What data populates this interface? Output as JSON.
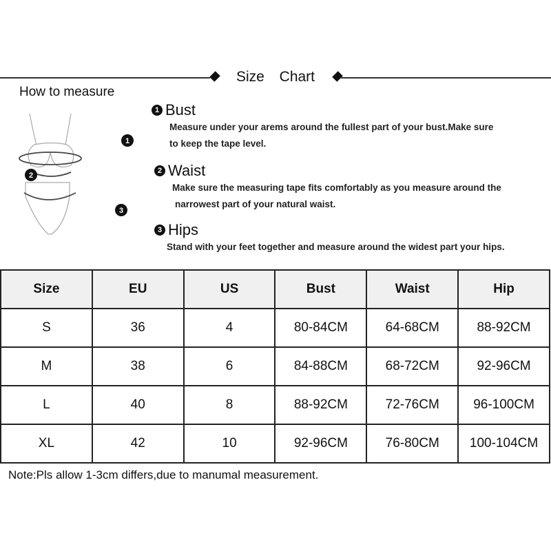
{
  "header": {
    "title": "Size  Chart"
  },
  "how_to": {
    "label": "How to measure",
    "sections": [
      {
        "num": "1",
        "title": "Bust",
        "desc": [
          "Measure under your arems around the fullest part of your bust.Make sure",
          "to keep the tape level."
        ]
      },
      {
        "num": "2",
        "title": "Waist",
        "desc": [
          "Make sure the measuring tape fits comfortably as you measure around the",
          "narrowest part of your natural waist."
        ]
      },
      {
        "num": "3",
        "title": "Hips",
        "desc": [
          "Stand with your feet together and measure around the widest part your hips."
        ]
      }
    ],
    "figure_labels": [
      "1",
      "2",
      "3"
    ]
  },
  "table": {
    "headers": [
      "Size",
      "EU",
      "US",
      "Bust",
      "Waist",
      "Hip"
    ],
    "rows": [
      [
        "S",
        "36",
        "4",
        "80-84CM",
        "64-68CM",
        "88-92CM"
      ],
      [
        "M",
        "38",
        "6",
        "84-88CM",
        "68-72CM",
        "92-96CM"
      ],
      [
        "L",
        "40",
        "8",
        "88-92CM",
        "72-76CM",
        "96-100CM"
      ],
      [
        "XL",
        "42",
        "10",
        "92-96CM",
        "76-80CM",
        "100-104CM"
      ]
    ]
  },
  "note": "Note:Pls allow 1-3cm differs,due to manumal measurement."
}
